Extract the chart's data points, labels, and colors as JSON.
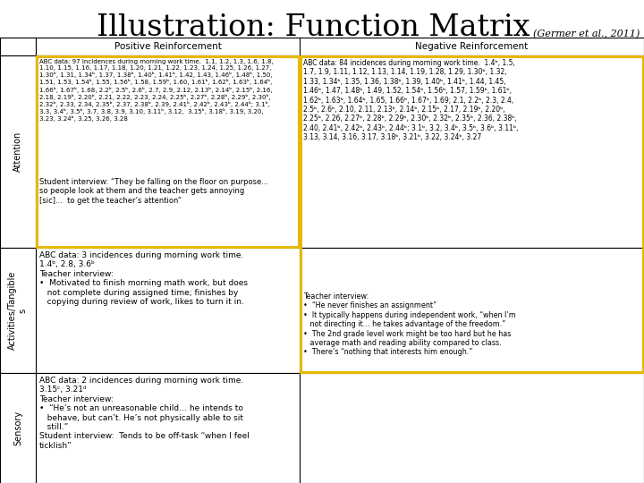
{
  "title": "Illustration: Function Matrix",
  "subtitle": "(Germer et al., 2011)",
  "col_headers": [
    "Positive Reinforcement",
    "Negative Reinforcement"
  ],
  "row_headers": [
    "Attention",
    "Activities/Tangible\ns",
    "Sensory"
  ],
  "background_color": "#ffffff",
  "highlight_color": "#E6B800",
  "cell_00_data": "ABC data: 97 incidences during morning work time.  1.1, 1.2, 1.3, 1.6, 1.8,\n1.10, 1.15, 1.16, 1.17, 1.18, 1.20, 1.21, 1.22, 1.23, 1.24, 1.25, 1.26, 1.27,\n1.30ᵇ, 1.31, 1.34ᵇ, 1.37, 1.38ᵇ, 1.40ᵇ, 1.41ᵇ, 1.42, 1.43, 1.46ᵇ, 1.48ᵇ, 1.50,\n1.51, 1.53, 1.54ᵇ, 1.55, 1.56ᵇ, 1.58, 1.59ᵇ, 1.60, 1.61ᵇ, 1.62ᵇ, 1.63ᵇ, 1.64ᵇ,\n1.66ᵇ, 1.67ᵇ, 1.68, 2.2ᵇ, 2.5ᵇ, 2.6ᵇ, 2.7, 2.9, 2.12, 2.13ᵇ, 2.14ᵇ, 2.15ᵇ, 2.16,\n2.18, 2.19ᵇ, 2.20ᵇ, 2.21, 2.22, 2.23, 2.24, 2.25ᵇ, 2.27ᵇ, 2.28ᵇ, 2.29ᵇ, 2.30ᵇ,\n2.32ᵇ, 2.33, 2.34, 2.35ᵇ, 2.37, 2.38ᵇ, 2.39, 2.41ᵇ, 2.42ᵇ, 2.43ᵇ, 2.44ᵇ; 3.1ᵇ,\n3.3, 3.4ᵇ, 3.5ᵇ, 3.7, 3.8, 3.9, 3.10, 3.11ᵇ, 3.12,  3.15ᵇ, 3.18ᵇ, 3.19, 3.20,\n3.23, 3.24ᵇ, 3.25, 3.26, 3.28",
  "cell_00_interview": "Student interview: “They be falling on the floor on purpose...\nso people look at them and the teacher gets annoying\n[sic]...  to get the teacher’s attention”",
  "cell_neg_big_data": "ABC data: 84 incidences during morning work time.  1.4ᵇ, 1.5,\n1.7, 1.9, 1.11, 1.12, 1.13, 1.14, 1.19, 1.28, 1.29, 1.30ᵇ, 1.32,\n1.33, 1.34ᵇ, 1.35, 1.36, 1.38ᵇ, 1.39, 1.40ᵇ, 1.41ᵇ, 1.44, 1.45,\n1.46ᵇ, 1.47, 1.48ᵇ, 1.49, 1.52, 1.54ᵇ, 1.56ᵇ, 1.57, 1.59ᵇ, 1.61ᵇ,\n1.62ᵇ, 1.63ᵇ, 1.64ᵇ, 1.65, 1.66ᵇ, 1.67ᵇ, 1.69; 2.1, 2.2ᵇ, 2.3, 2.4,\n2.5ᵇ, 2.6ᵇ, 2.10, 2.11, 2.13ᵇ, 2.14ᵇ, 2.15ᵇ, 2.17, 2.19ᵇ, 2.20ᵇ,\n2.25ᵇ, 2.26, 2.27ᵇ, 2.28ᵇ, 2.29ᵇ, 2.30ᵇ, 2.32ᵇ, 2.35ᵇ, 2.36, 2.38ᵇ,\n2.40, 2.41ᵇ, 2.42ᵇ, 2.43ᵇ, 2.44ᵇ; 3.1ᵇ, 3.2, 3.4ᵇ, 3.5ᵇ, 3.6ᵇ, 3.11ᵇ,\n3.13, 3.14, 3.16, 3.17, 3.18ᵇ, 3.21ᵇ, 3.22, 3.24ᵇ, 3.27",
  "cell_neg_big_interview": "Teacher interview:\n•  “He never finishes an assignment”\n•  It typically happens during independent work, “when I’m\n   not directing it… he takes advantage of the freedom.”\n•  The 2nd grade level work might be too hard but he has\n   average math and reading ability compared to class.\n•  There’s “nothing that interests him enough.”",
  "cell_10": "ABC data: 3 incidences during morning work time.\n1.4ᵇ, 2.8, 3.6ᵇ\nTeacher interview:\n•  Motivated to finish morning math work, but does\n   not complete during assigned time; finishes by\n   copying during review of work, likes to turn it in.",
  "cell_20": "ABC data: 2 incidences during morning work time.\n3.15ᶜ, 3.21ᵈ\nTeacher interview:\n•  “He’s not an unreasonable child… he intends to\n   behave, but can’t. He’s not physically able to sit\n   still.”\nStudent interview:  Tends to be off-task “when I feel\nticklish”"
}
